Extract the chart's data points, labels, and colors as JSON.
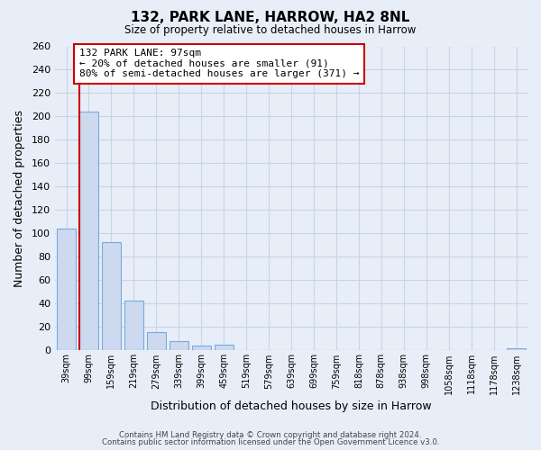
{
  "title": "132, PARK LANE, HARROW, HA2 8NL",
  "subtitle": "Size of property relative to detached houses in Harrow",
  "xlabel": "Distribution of detached houses by size in Harrow",
  "ylabel": "Number of detached properties",
  "bar_color": "#ccd9ee",
  "bar_edge_color": "#7aaadd",
  "marker_color": "#cc0000",
  "categories": [
    "39sqm",
    "99sqm",
    "159sqm",
    "219sqm",
    "279sqm",
    "339sqm",
    "399sqm",
    "459sqm",
    "519sqm",
    "579sqm",
    "639sqm",
    "699sqm",
    "759sqm",
    "818sqm",
    "878sqm",
    "938sqm",
    "998sqm",
    "1058sqm",
    "1118sqm",
    "1178sqm",
    "1238sqm"
  ],
  "values": [
    104,
    204,
    93,
    43,
    16,
    8,
    4,
    5,
    0,
    0,
    0,
    0,
    0,
    0,
    0,
    0,
    0,
    0,
    0,
    0,
    2
  ],
  "ylim": [
    0,
    260
  ],
  "yticks": [
    0,
    20,
    40,
    60,
    80,
    100,
    120,
    140,
    160,
    180,
    200,
    220,
    240,
    260
  ],
  "annotation_title": "132 PARK LANE: 97sqm",
  "annotation_line1": "← 20% of detached houses are smaller (91)",
  "annotation_line2": "80% of semi-detached houses are larger (371) →",
  "footer1": "Contains HM Land Registry data © Crown copyright and database right 2024.",
  "footer2": "Contains public sector information licensed under the Open Government Licence v3.0.",
  "bg_color": "#e8eef8",
  "grid_color": "#c8d4e8",
  "annotation_box_color": "#ffffff",
  "annotation_box_edge": "#cc0000"
}
